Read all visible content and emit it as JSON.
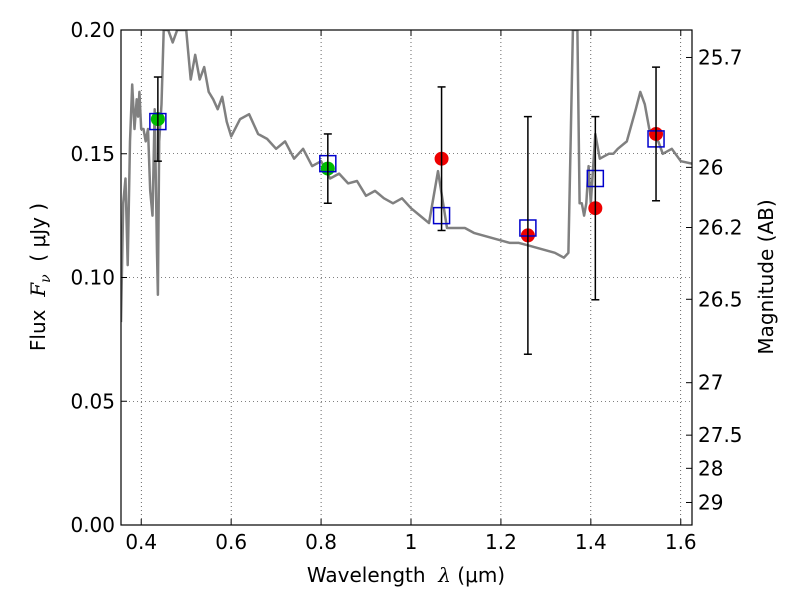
{
  "chart_data": {
    "type": "scatter",
    "xlabel": {
      "prefix": "Wavelength  ",
      "symbol": "λ",
      "unit": " (μm)"
    },
    "ylabel": {
      "prefix": "Flux  ",
      "symbol": "F",
      "sub": "ν",
      "unit": "  ( μJy )"
    },
    "y2label": "Magnitude (AB)",
    "xlim": [
      0.355,
      1.625
    ],
    "ylim": [
      0.0,
      0.2
    ],
    "grid": true,
    "x_ticks": [
      {
        "value": 0.4,
        "label": "0.4"
      },
      {
        "value": 0.6,
        "label": "0.6"
      },
      {
        "value": 0.8,
        "label": "0.8"
      },
      {
        "value": 1.0,
        "label": "1"
      },
      {
        "value": 1.2,
        "label": "1.2"
      },
      {
        "value": 1.4,
        "label": "1.4"
      },
      {
        "value": 1.6,
        "label": "1.6"
      }
    ],
    "y_ticks": [
      {
        "value": 0.0,
        "label": "0.00"
      },
      {
        "value": 0.05,
        "label": "0.05"
      },
      {
        "value": 0.1,
        "label": "0.10"
      },
      {
        "value": 0.15,
        "label": "0.15"
      },
      {
        "value": 0.2,
        "label": "0.20"
      }
    ],
    "y2_ticks": [
      {
        "flux": 0.1889,
        "label": "25.7"
      },
      {
        "flux": 0.1445,
        "label": "26"
      },
      {
        "flux": 0.1202,
        "label": "26.2"
      },
      {
        "flux": 0.0912,
        "label": "26.5"
      },
      {
        "flux": 0.0575,
        "label": "27"
      },
      {
        "flux": 0.0363,
        "label": "27.5"
      },
      {
        "flux": 0.0229,
        "label": "28"
      },
      {
        "flux": 0.0091,
        "label": "29"
      }
    ],
    "series": [
      {
        "kind": "line",
        "color": "#808080",
        "x": [
          0.355,
          0.36,
          0.365,
          0.37,
          0.375,
          0.38,
          0.385,
          0.39,
          0.393,
          0.396,
          0.4,
          0.405,
          0.41,
          0.415,
          0.42,
          0.425,
          0.43,
          0.435,
          0.437,
          0.44,
          0.445,
          0.45,
          0.46,
          0.47,
          0.48,
          0.49,
          0.5,
          0.51,
          0.52,
          0.53,
          0.54,
          0.55,
          0.56,
          0.57,
          0.58,
          0.59,
          0.6,
          0.62,
          0.64,
          0.66,
          0.68,
          0.7,
          0.72,
          0.74,
          0.76,
          0.78,
          0.8,
          0.82,
          0.84,
          0.86,
          0.88,
          0.9,
          0.92,
          0.94,
          0.96,
          0.98,
          1.0,
          1.02,
          1.04,
          1.06,
          1.08,
          1.1,
          1.12,
          1.14,
          1.16,
          1.18,
          1.2,
          1.22,
          1.24,
          1.26,
          1.28,
          1.3,
          1.32,
          1.34,
          1.35,
          1.36,
          1.365,
          1.37,
          1.375,
          1.38,
          1.385,
          1.39,
          1.395,
          1.4,
          1.41,
          1.42,
          1.43,
          1.44,
          1.45,
          1.46,
          1.48,
          1.5,
          1.51,
          1.52,
          1.53,
          1.54,
          1.55,
          1.56,
          1.58,
          1.6,
          1.625
        ],
        "y": [
          0.082,
          0.13,
          0.14,
          0.105,
          0.155,
          0.178,
          0.16,
          0.172,
          0.165,
          0.175,
          0.16,
          0.16,
          0.155,
          0.16,
          0.135,
          0.125,
          0.168,
          0.11,
          0.093,
          0.155,
          0.17,
          0.2,
          0.2,
          0.195,
          0.2,
          0.2,
          0.2,
          0.18,
          0.19,
          0.18,
          0.185,
          0.175,
          0.172,
          0.168,
          0.173,
          0.163,
          0.157,
          0.164,
          0.166,
          0.158,
          0.156,
          0.152,
          0.155,
          0.148,
          0.152,
          0.145,
          0.147,
          0.14,
          0.142,
          0.138,
          0.139,
          0.133,
          0.135,
          0.132,
          0.13,
          0.132,
          0.128,
          0.125,
          0.122,
          0.143,
          0.12,
          0.12,
          0.12,
          0.118,
          0.117,
          0.116,
          0.115,
          0.114,
          0.114,
          0.113,
          0.112,
          0.111,
          0.11,
          0.108,
          0.11,
          0.2,
          0.2,
          0.2,
          0.13,
          0.13,
          0.125,
          0.13,
          0.145,
          0.13,
          0.158,
          0.148,
          0.149,
          0.15,
          0.15,
          0.152,
          0.155,
          0.168,
          0.175,
          0.17,
          0.16,
          0.157,
          0.155,
          0.15,
          0.152,
          0.147,
          0.146
        ]
      },
      {
        "kind": "markers",
        "marker": "circle",
        "color": "#00bb00",
        "points": [
          {
            "x": 0.437,
            "y": 0.164
          },
          {
            "x": 0.815,
            "y": 0.144
          }
        ]
      },
      {
        "kind": "markers",
        "marker": "circle",
        "color": "#ee0000",
        "points": [
          {
            "x": 1.068,
            "y": 0.148
          },
          {
            "x": 1.26,
            "y": 0.117
          },
          {
            "x": 1.41,
            "y": 0.128
          },
          {
            "x": 1.545,
            "y": 0.158
          }
        ]
      },
      {
        "kind": "markers",
        "marker": "open-square",
        "color": "#0000cc",
        "points": [
          {
            "x": 0.437,
            "y": 0.163
          },
          {
            "x": 0.815,
            "y": 0.146
          },
          {
            "x": 1.068,
            "y": 0.125
          },
          {
            "x": 1.26,
            "y": 0.12
          },
          {
            "x": 1.41,
            "y": 0.14
          },
          {
            "x": 1.545,
            "y": 0.156
          }
        ]
      },
      {
        "kind": "errorbars",
        "color": "#000000",
        "bars": [
          {
            "x": 0.437,
            "low": 0.147,
            "high": 0.181
          },
          {
            "x": 0.815,
            "low": 0.13,
            "high": 0.158
          },
          {
            "x": 1.068,
            "low": 0.119,
            "high": 0.177
          },
          {
            "x": 1.26,
            "low": 0.069,
            "high": 0.165
          },
          {
            "x": 1.41,
            "low": 0.091,
            "high": 0.165
          },
          {
            "x": 1.545,
            "low": 0.131,
            "high": 0.185
          }
        ]
      }
    ]
  }
}
